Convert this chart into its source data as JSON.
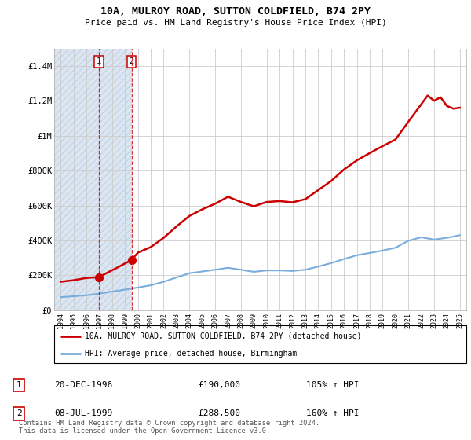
{
  "title": "10A, MULROY ROAD, SUTTON COLDFIELD, B74 2PY",
  "subtitle": "Price paid vs. HM Land Registry's House Price Index (HPI)",
  "ylim": [
    0,
    1500000
  ],
  "yticks": [
    0,
    200000,
    400000,
    600000,
    800000,
    1000000,
    1200000,
    1400000
  ],
  "ytick_labels": [
    "£0",
    "£200K",
    "£400K",
    "£600K",
    "£800K",
    "£1M",
    "£1.2M",
    "£1.4M"
  ],
  "sale_dates": [
    1996.97,
    1999.52
  ],
  "sale_prices": [
    190000,
    288500
  ],
  "sale_color": "#cc0000",
  "hpi_color": "#7aaddc",
  "legend_label_red": "10A, MULROY ROAD, SUTTON COLDFIELD, B74 2PY (detached house)",
  "legend_label_blue": "HPI: Average price, detached house, Birmingham",
  "transaction_labels": [
    "1",
    "2"
  ],
  "transaction_dates": [
    "20-DEC-1996",
    "08-JUL-1999"
  ],
  "transaction_prices": [
    "£190,000",
    "£288,500"
  ],
  "transaction_hpi": [
    "105% ↑ HPI",
    "160% ↑ HPI"
  ],
  "footer": "Contains HM Land Registry data © Crown copyright and database right 2024.\nThis data is licensed under the Open Government Licence v3.0.",
  "background_hatch_color": "#c8d4e8",
  "grid_color": "#cccccc",
  "xlim_start": 1993.5,
  "xlim_end": 2025.5,
  "hpi_years": [
    1994,
    1995,
    1996,
    1997,
    1998,
    1999,
    2000,
    2001,
    2002,
    2003,
    2004,
    2005,
    2006,
    2007,
    2008,
    2009,
    2010,
    2011,
    2012,
    2013,
    2014,
    2015,
    2016,
    2017,
    2018,
    2019,
    2020,
    2021,
    2022,
    2023,
    2024,
    2025
  ],
  "hpi_values": [
    75000,
    80000,
    86000,
    95000,
    107000,
    118000,
    130000,
    143000,
    163000,
    188000,
    212000,
    222000,
    232000,
    243000,
    232000,
    220000,
    228000,
    228000,
    225000,
    232000,
    250000,
    270000,
    293000,
    315000,
    328000,
    342000,
    358000,
    398000,
    418000,
    405000,
    415000,
    430000
  ],
  "prop_years": [
    1994.0,
    1995.0,
    1996.0,
    1996.97,
    1997.5,
    1998.5,
    1999.52,
    2000,
    2001,
    2002,
    2003,
    2004,
    2005,
    2006,
    2007,
    2008,
    2009,
    2010,
    2011,
    2012,
    2013,
    2014,
    2015,
    2016,
    2017,
    2018,
    2019,
    2020,
    2021,
    2022,
    2022.5,
    2023,
    2023.5,
    2024,
    2024.5,
    2025
  ],
  "prop_values": [
    163000,
    172000,
    185000,
    190000,
    210000,
    248000,
    288500,
    330000,
    362000,
    415000,
    480000,
    540000,
    578000,
    610000,
    650000,
    620000,
    595000,
    620000,
    625000,
    618000,
    636000,
    688000,
    740000,
    806000,
    858000,
    900000,
    940000,
    978000,
    1080000,
    1180000,
    1230000,
    1200000,
    1220000,
    1170000,
    1155000,
    1160000
  ]
}
